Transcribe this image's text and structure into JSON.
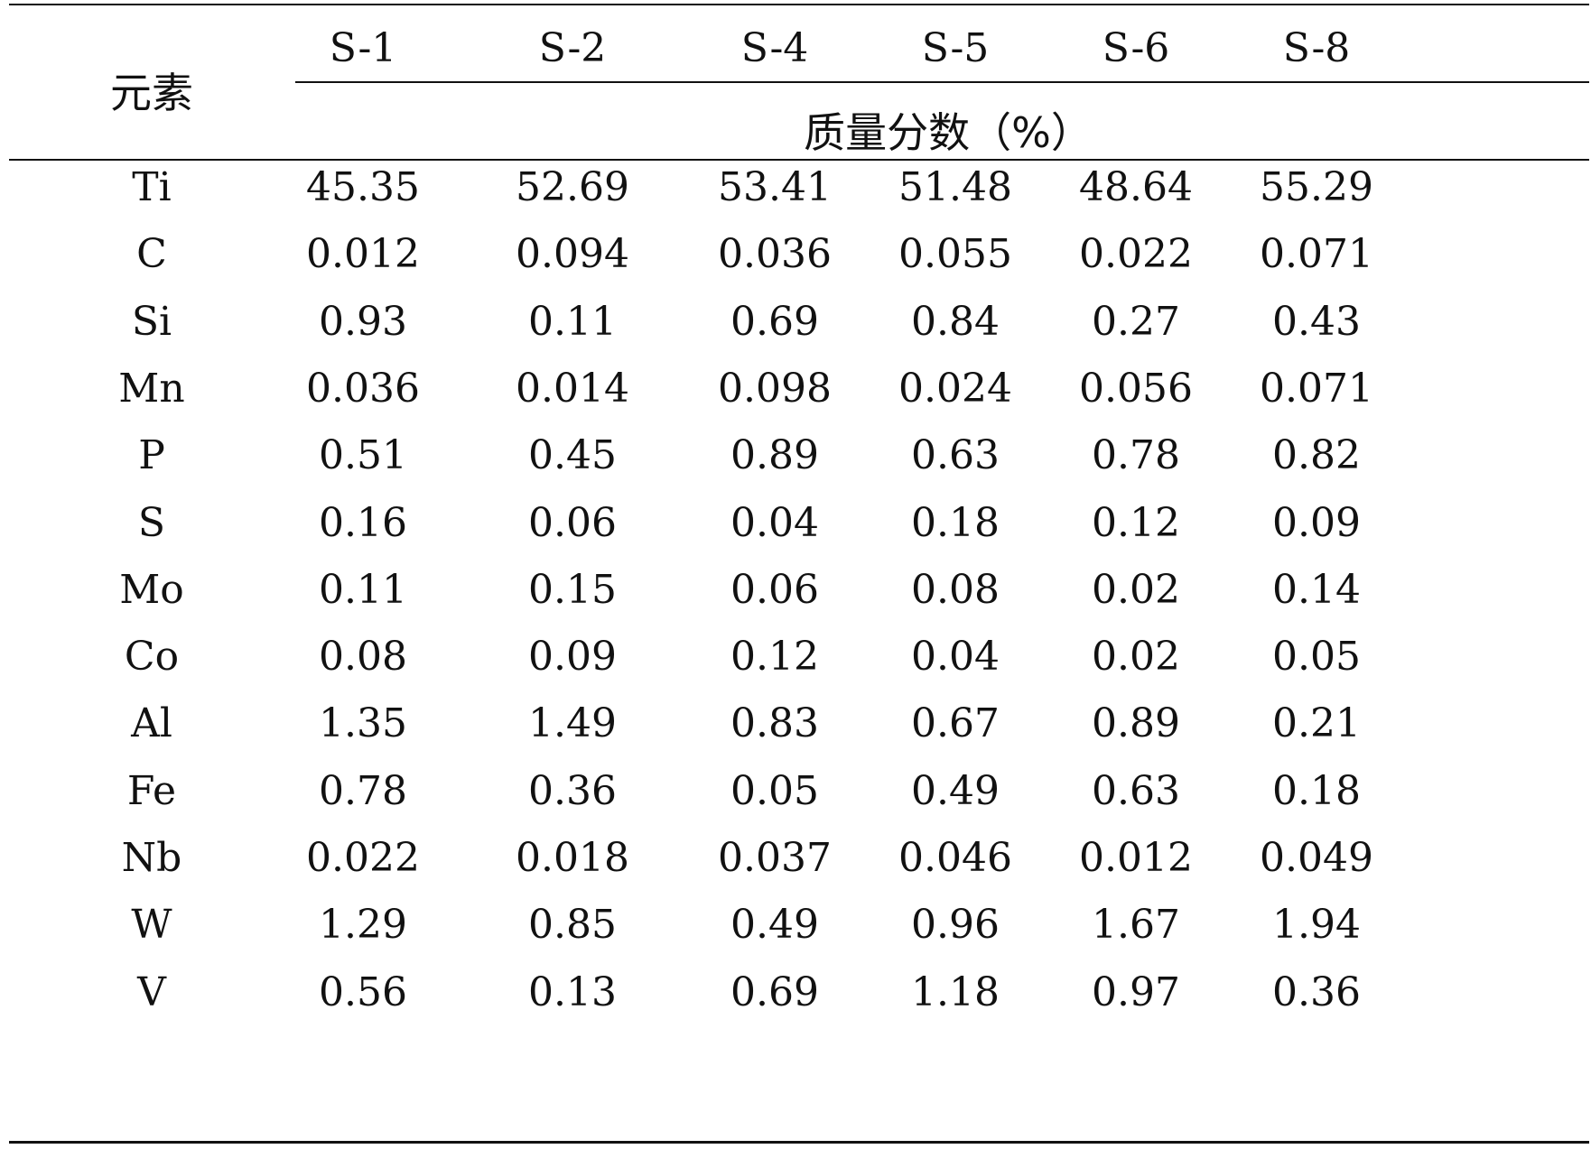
{
  "table": {
    "corner_header": "元素",
    "unit_header": "质量分数（%）",
    "columns": [
      "S-1",
      "S-2",
      "S-4",
      "S-5",
      "S-6",
      "S-8"
    ],
    "rows": [
      {
        "element": "Ti",
        "values": [
          "45.35",
          "52.69",
          "53.41",
          "51.48",
          "48.64",
          "55.29"
        ]
      },
      {
        "element": "C",
        "values": [
          "0.012",
          "0.094",
          "0.036",
          "0.055",
          "0.022",
          "0.071"
        ]
      },
      {
        "element": "Si",
        "values": [
          "0.93",
          "0.11",
          "0.69",
          "0.84",
          "0.27",
          "0.43"
        ]
      },
      {
        "element": "Mn",
        "values": [
          "0.036",
          "0.014",
          "0.098",
          "0.024",
          "0.056",
          "0.071"
        ]
      },
      {
        "element": "P",
        "values": [
          "0.51",
          "0.45",
          "0.89",
          "0.63",
          "0.78",
          "0.82"
        ]
      },
      {
        "element": "S",
        "values": [
          "0.16",
          "0.06",
          "0.04",
          "0.18",
          "0.12",
          "0.09"
        ]
      },
      {
        "element": "Mo",
        "values": [
          "0.11",
          "0.15",
          "0.06",
          "0.08",
          "0.02",
          "0.14"
        ]
      },
      {
        "element": "Co",
        "values": [
          "0.08",
          "0.09",
          "0.12",
          "0.04",
          "0.02",
          "0.05"
        ]
      },
      {
        "element": "Al",
        "values": [
          "1.35",
          "1.49",
          "0.83",
          "0.67",
          "0.89",
          "0.21"
        ]
      },
      {
        "element": "Fe",
        "values": [
          "0.78",
          "0.36",
          "0.05",
          "0.49",
          "0.63",
          "0.18"
        ]
      },
      {
        "element": "Nb",
        "values": [
          "0.022",
          "0.018",
          "0.037",
          "0.046",
          "0.012",
          "0.049"
        ]
      },
      {
        "element": "W",
        "values": [
          "1.29",
          "0.85",
          "0.49",
          "0.96",
          "1.67",
          "1.94"
        ]
      },
      {
        "element": "V",
        "values": [
          "0.56",
          "0.13",
          "0.69",
          "1.18",
          "0.97",
          "0.36"
        ]
      }
    ]
  }
}
